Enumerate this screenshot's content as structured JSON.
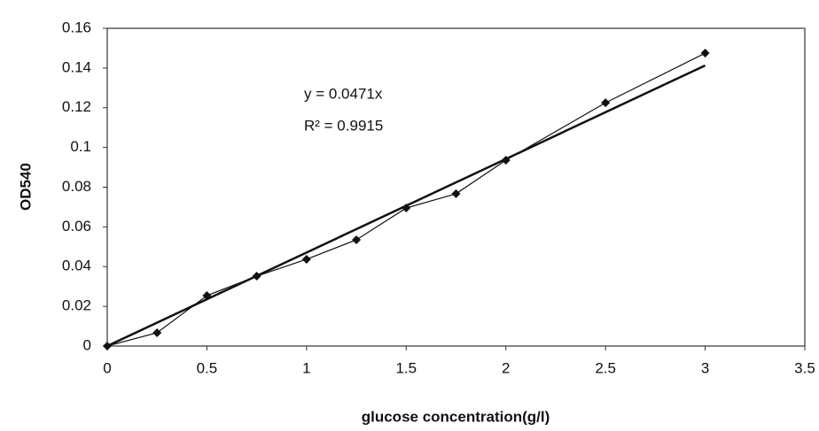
{
  "chart_data": {
    "type": "scatter",
    "x_label": "glucose concentration(g/l)",
    "y_label": "OD540",
    "x": [
      0,
      0.25,
      0.5,
      0.75,
      1,
      1.25,
      1.5,
      1.75,
      2,
      2.5,
      3
    ],
    "values": [
      0,
      0.0067,
      0.0254,
      0.0352,
      0.0437,
      0.0535,
      0.0695,
      0.0767,
      0.0936,
      0.1225,
      0.1475
    ],
    "color": "#111111",
    "xlim": [
      0,
      3.5
    ],
    "xticks": [
      0,
      0.5,
      1,
      1.5,
      2,
      2.5,
      3,
      3.5
    ],
    "ylim": [
      0,
      0.16
    ],
    "yticks": [
      0,
      0.02,
      0.04,
      0.06,
      0.08,
      0.1,
      0.12,
      0.14,
      0.16
    ],
    "grid": false,
    "trendline": {
      "slope": 0.0471,
      "equation": "y = 0.0471x",
      "r2": "R² = 0.9915"
    }
  }
}
